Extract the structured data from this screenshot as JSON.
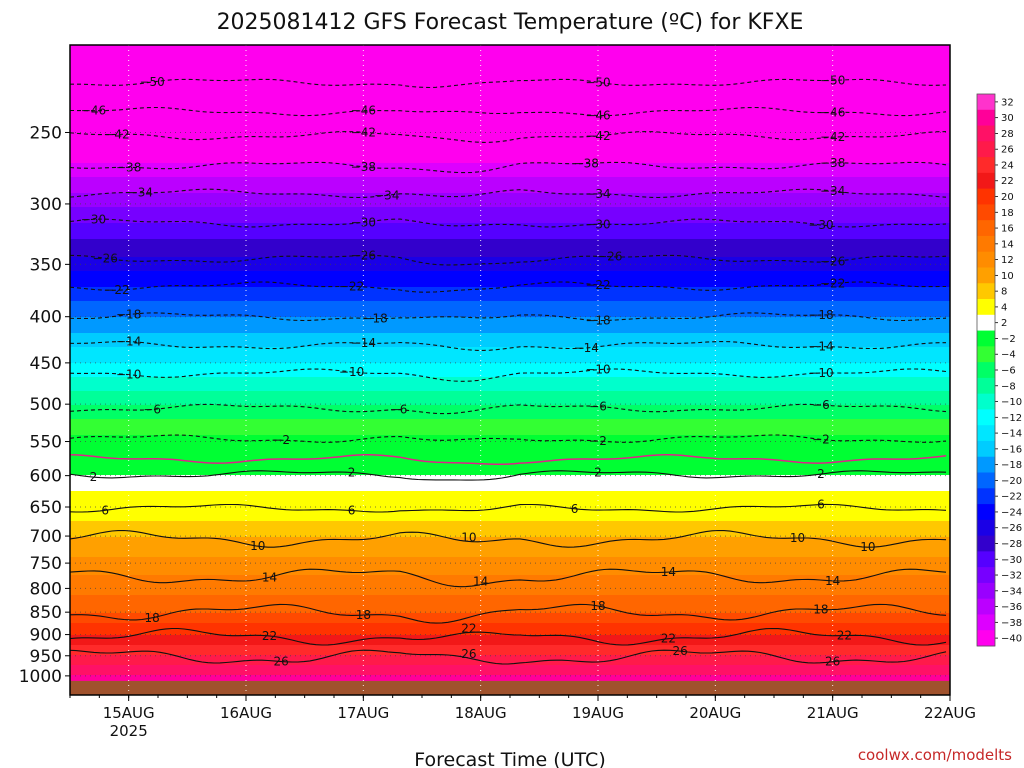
{
  "title": "2025081412 GFS Forecast Temperature (ºC) for KFXE",
  "credit": "coolwx.com/modelts",
  "chart_data": {
    "type": "heatmap",
    "title": "2025081412 GFS Forecast Temperature (ºC) for KFXE",
    "xlabel": "Forecast Time (UTC)",
    "ylabel": "",
    "x_ticks": [
      {
        "label": "15AUG",
        "sublabel": "2025",
        "day": 15
      },
      {
        "label": "16AUG",
        "day": 16
      },
      {
        "label": "17AUG",
        "day": 17
      },
      {
        "label": "18AUG",
        "day": 18
      },
      {
        "label": "19AUG",
        "day": 19
      },
      {
        "label": "20AUG",
        "day": 20
      },
      {
        "label": "21AUG",
        "day": 21
      },
      {
        "label": "22AUG",
        "day": 22
      }
    ],
    "xlim": [
      14.5,
      22.0
    ],
    "y_ticks": [
      250,
      300,
      350,
      400,
      450,
      500,
      550,
      600,
      650,
      700,
      750,
      800,
      850,
      900,
      950,
      1000
    ],
    "ylim": [
      200,
      1050
    ],
    "y_scale": "log",
    "y_inverted": true,
    "grid": true,
    "colorbar_levels": [
      32,
      30,
      28,
      26,
      24,
      22,
      20,
      18,
      16,
      14,
      12,
      10,
      8,
      4,
      2,
      -2,
      -4,
      -6,
      -8,
      -10,
      -12,
      -14,
      -16,
      -18,
      -20,
      -22,
      -24,
      -26,
      -28,
      -30,
      -32,
      -34,
      -36,
      -38,
      -40
    ],
    "colorbar_colors": [
      "#ff33cc",
      "#ff0099",
      "#ff1166",
      "#ff1a4a",
      "#ff2a2a",
      "#f21818",
      "#ff3300",
      "#ff4a00",
      "#ff6600",
      "#ff7a00",
      "#ff8c00",
      "#ffa000",
      "#ffc800",
      "#ffff00",
      "#ffffff",
      "#00ff33",
      "#33ff33",
      "#00ff66",
      "#00ff99",
      "#00ffcc",
      "#00ffff",
      "#00e6ff",
      "#00ccff",
      "#0099ff",
      "#0066ff",
      "#0033ff",
      "#0000ff",
      "#1a00e6",
      "#3300cc",
      "#5500ff",
      "#7700ff",
      "#9900ff",
      "#bb00ff",
      "#dd00ff",
      "#ff00ee"
    ],
    "profile": [
      {
        "p": 225,
        "t": -50
      },
      {
        "p": 250,
        "t": -42
      },
      {
        "p": 280,
        "t": -36
      },
      {
        "p": 315,
        "t": -30
      },
      {
        "p": 350,
        "t": -25
      },
      {
        "p": 400,
        "t": -18
      },
      {
        "p": 450,
        "t": -12
      },
      {
        "p": 500,
        "t": -6
      },
      {
        "p": 550,
        "t": -1
      },
      {
        "p": 600,
        "t": 2
      },
      {
        "p": 650,
        "t": 6
      },
      {
        "p": 700,
        "t": 10
      },
      {
        "p": 775,
        "t": 14
      },
      {
        "p": 850,
        "t": 18
      },
      {
        "p": 900,
        "t": 22
      },
      {
        "p": 950,
        "t": 26
      },
      {
        "p": 1000,
        "t": 30
      },
      {
        "p": 1050,
        "t": 32
      }
    ],
    "contours": [
      {
        "level": -50,
        "p": 220,
        "label": "-50",
        "style": "dashed",
        "label_days": [
          15.2,
          19.0,
          21.0
        ]
      },
      {
        "level": -46,
        "p": 237,
        "label": "-46",
        "style": "dashed",
        "label_days": [
          14.7,
          17.0,
          19.0,
          21.0
        ]
      },
      {
        "level": -42,
        "p": 252,
        "label": "-42",
        "style": "dashed",
        "label_days": [
          14.9,
          17.0,
          19.0,
          21.0
        ]
      },
      {
        "level": -38,
        "p": 272,
        "label": "-38",
        "style": "dashed",
        "label_days": [
          15.0,
          17.0,
          18.9,
          21.0
        ]
      },
      {
        "level": -34,
        "p": 292,
        "label": "-34",
        "style": "dashed",
        "label_days": [
          15.1,
          17.2,
          19.0,
          21.0
        ]
      },
      {
        "level": -30,
        "p": 315,
        "label": "-30",
        "style": "dashed",
        "label_days": [
          14.7,
          17.0,
          19.0,
          20.9
        ]
      },
      {
        "level": -26,
        "p": 345,
        "label": "-26",
        "style": "dashed",
        "label_days": [
          14.8,
          17.0,
          19.1,
          21.0
        ]
      },
      {
        "level": -22,
        "p": 370,
        "label": "-22",
        "style": "dashed",
        "label_days": [
          14.9,
          16.9,
          19.0,
          21.0
        ]
      },
      {
        "level": -18,
        "p": 400,
        "label": "-18",
        "style": "dashed",
        "label_days": [
          15.0,
          17.1,
          19.0,
          20.9
        ]
      },
      {
        "level": -14,
        "p": 430,
        "label": "-14",
        "style": "dashed",
        "label_days": [
          15.0,
          17.0,
          18.9,
          20.9
        ]
      },
      {
        "level": -10,
        "p": 462,
        "label": "-10",
        "style": "dashed",
        "label_days": [
          15.0,
          16.9,
          19.0,
          20.9
        ]
      },
      {
        "level": -6,
        "p": 505,
        "label": "-6",
        "style": "dashed",
        "label_days": [
          15.2,
          17.3,
          19.0,
          20.9
        ]
      },
      {
        "level": -2,
        "p": 546,
        "label": "-2",
        "style": "dashed",
        "label_days": [
          16.3,
          19.0,
          20.9
        ]
      },
      {
        "level": 0,
        "p": 575,
        "label": "",
        "style": "magenta",
        "label_days": []
      },
      {
        "level": 2,
        "p": 598,
        "label": "2",
        "style": "solid",
        "label_days": [
          14.7,
          16.9,
          19.0,
          20.9
        ]
      },
      {
        "level": 6,
        "p": 652,
        "label": "6",
        "style": "solid",
        "label_days": [
          14.8,
          16.9,
          18.8,
          20.9
        ]
      },
      {
        "level": 10,
        "p": 705,
        "label": "10",
        "style": "solid",
        "label_days": [
          16.1,
          17.9,
          20.7,
          21.3
        ]
      },
      {
        "level": 14,
        "p": 775,
        "label": "14",
        "style": "solid",
        "label_days": [
          16.2,
          18.0,
          19.6,
          21.0
        ]
      },
      {
        "level": 18,
        "p": 850,
        "label": "18",
        "style": "solid",
        "label_days": [
          15.2,
          17.0,
          19.0,
          20.9
        ]
      },
      {
        "level": 22,
        "p": 905,
        "label": "22",
        "style": "solid",
        "label_days": [
          16.2,
          17.9,
          19.6,
          21.1
        ]
      },
      {
        "level": 26,
        "p": 952,
        "label": "26",
        "style": "solid",
        "label_days": [
          16.3,
          17.9,
          19.7,
          21.0
        ]
      }
    ],
    "surface_color": "#a0522d"
  }
}
